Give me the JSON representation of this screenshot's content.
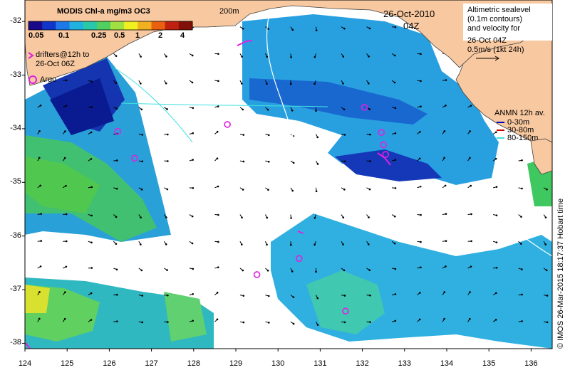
{
  "colorbar": {
    "title": "MODIS Chl-a mg/m3 OC3",
    "ticks": [
      "0.05",
      "0.1",
      "0.25",
      "0.5",
      "1",
      "2",
      "4"
    ],
    "colors": [
      "#1a0a8a",
      "#1035c8",
      "#1e78e8",
      "#22b0e0",
      "#28c8a8",
      "#50d060",
      "#a0e040",
      "#f0f020",
      "#f0b020",
      "#e86010",
      "#c02010",
      "#801008"
    ]
  },
  "date_label": "26-Oct-2010",
  "time_label": "04Z",
  "contour_label": "200m",
  "drifters_legend": [
    "drifters@12h to",
    "26-Oct 06Z"
  ],
  "argo_legend": "Argo",
  "altimetry_legend": [
    "Altimetric sealevel",
    "(0.1m contours)",
    "and velocity for",
    "26-Oct 04Z",
    "0.5m/s (1kt 24h)"
  ],
  "anmn_legend": {
    "title": "ANMN 12h av.",
    "items": [
      {
        "label": "0-30m",
        "color": "#0000c0"
      },
      {
        "label": "30-80m",
        "color": "#d00000"
      },
      {
        "label": "80-150m",
        "color": "#40e0e0"
      }
    ]
  },
  "credit": "© IMOS 26-Mar-2015 18:17:37 Hobart time",
  "axes": {
    "y_ticks": [
      "-32",
      "-33",
      "-34",
      "-35",
      "-36",
      "-37",
      "-38"
    ],
    "x_ticks": [
      "124",
      "125",
      "126",
      "127",
      "128",
      "129",
      "130",
      "131",
      "132",
      "133",
      "134",
      "135",
      "136"
    ]
  },
  "argo_floats": [
    {
      "lon": 126.2,
      "lat": -34.05
    },
    {
      "lon": 126.6,
      "lat": -34.55
    },
    {
      "lon": 128.8,
      "lat": -33.92
    },
    {
      "lon": 132.05,
      "lat": -33.6
    },
    {
      "lon": 132.45,
      "lat": -34.07
    },
    {
      "lon": 132.5,
      "lat": -34.3
    },
    {
      "lon": 132.55,
      "lat": -34.48
    },
    {
      "lon": 130.5,
      "lat": -36.42
    },
    {
      "lon": 129.5,
      "lat": -36.72
    },
    {
      "lon": 131.6,
      "lat": -37.4
    }
  ],
  "colors": {
    "land": "#f8c8a0",
    "ocean_blank": "#ffffff",
    "argo": "#e020e0",
    "contour": "#40e0e0"
  }
}
